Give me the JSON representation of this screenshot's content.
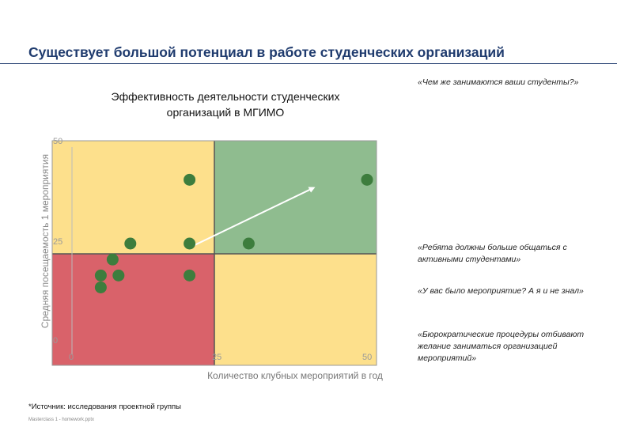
{
  "slide": {
    "title": "Существует большой потенциал в работе студенческих организаций",
    "chart_title_line1": "Эффективность деятельности студенческих",
    "chart_title_line2": "организаций в МГИМО",
    "quotes": [
      "«Чем же занимаются ваши студенты?»",
      "«Ребята должны больше общаться с активными студентами»",
      "«У вас было мероприятие? А я и не знал»",
      "«Бюрократические процедуры отбивают желание заниматься организацией мероприятий»"
    ],
    "source": "*Источник: исследования проектной группы",
    "footer": "Masterclass 1 - homework.pptx"
  },
  "colors": {
    "red_quadrant": "#d9626a",
    "yellow_quadrant": "#fde08c",
    "green_quadrant": "#8fbc8f",
    "point": "#3d7d3d",
    "arrow": "#ffffff"
  },
  "chart_data": {
    "type": "scatter",
    "xlabel": "Количество клубных мероприятий в год",
    "ylabel": "Средняя посещаемость 1 мероприятия",
    "xlim": [
      0,
      50
    ],
    "ylim": [
      0,
      50
    ],
    "x_ticks": [
      "0",
      "25",
      "50"
    ],
    "y_ticks": [
      "0",
      "25",
      "50"
    ],
    "quadrants": {
      "low_low": "red",
      "low_high": "yellow",
      "high_low": "yellow",
      "high_high": "green"
    },
    "points": [
      {
        "x": 20,
        "y": 41
      },
      {
        "x": 50,
        "y": 41
      },
      {
        "x": 10,
        "y": 25
      },
      {
        "x": 20,
        "y": 25
      },
      {
        "x": 30,
        "y": 25
      },
      {
        "x": 7,
        "y": 21
      },
      {
        "x": 5,
        "y": 17
      },
      {
        "x": 8,
        "y": 17
      },
      {
        "x": 20,
        "y": 17
      },
      {
        "x": 5,
        "y": 14
      }
    ],
    "arrow": {
      "from": {
        "x": 20,
        "y": 24
      },
      "to": {
        "x": 41,
        "y": 39
      }
    }
  }
}
